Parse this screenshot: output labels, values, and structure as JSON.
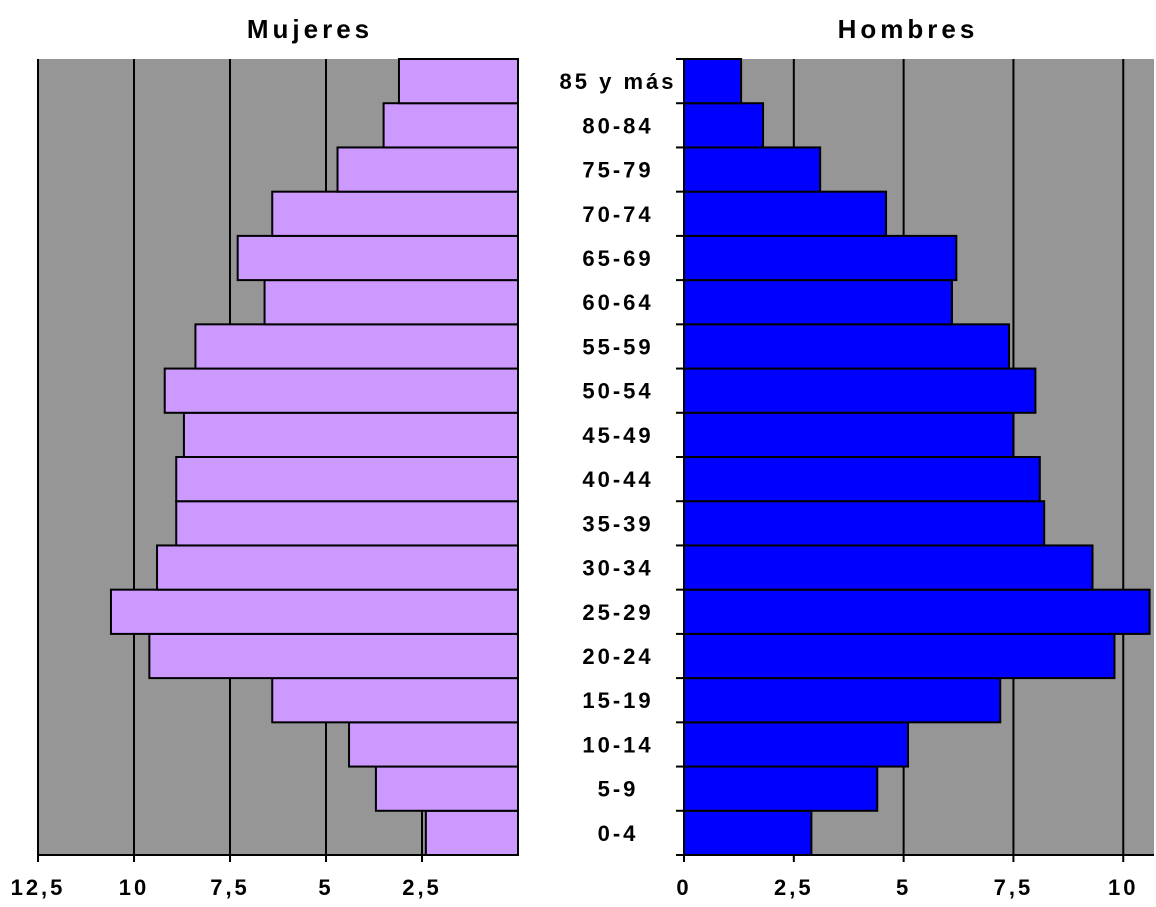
{
  "chart_data": {
    "type": "bar",
    "orientation": "horizontal",
    "subtype": "population-pyramid",
    "categories": [
      "0-4",
      "5-9",
      "10-14",
      "15-19",
      "20-24",
      "25-29",
      "30-34",
      "35-39",
      "40-44",
      "45-49",
      "50-54",
      "55-59",
      "60-64",
      "65-69",
      "70-74",
      "75-79",
      "80-84",
      "85 y más"
    ],
    "series": [
      {
        "name": "Mujeres",
        "side": "left",
        "color": "#CC99FF",
        "values": [
          2.4,
          3.7,
          4.4,
          6.4,
          9.6,
          10.6,
          9.4,
          8.9,
          8.9,
          8.7,
          9.2,
          8.4,
          6.6,
          7.3,
          6.4,
          4.7,
          3.5,
          3.1
        ],
        "xlim": [
          0,
          12.5
        ],
        "ticks": [
          "12,5",
          "10",
          "7,5",
          "5",
          "2,5"
        ]
      },
      {
        "name": "Hombres",
        "side": "right",
        "color": "#0000FF",
        "values": [
          2.9,
          4.4,
          5.1,
          7.2,
          9.8,
          10.6,
          9.3,
          8.2,
          8.1,
          7.5,
          8.0,
          7.4,
          6.1,
          6.2,
          4.6,
          3.1,
          1.8,
          1.3
        ],
        "xlim": [
          0,
          10.7
        ],
        "ticks": [
          "0",
          "2,5",
          "5",
          "7,5",
          "10"
        ]
      }
    ],
    "plot_background": "#969696",
    "grid": true,
    "legend": "none"
  }
}
